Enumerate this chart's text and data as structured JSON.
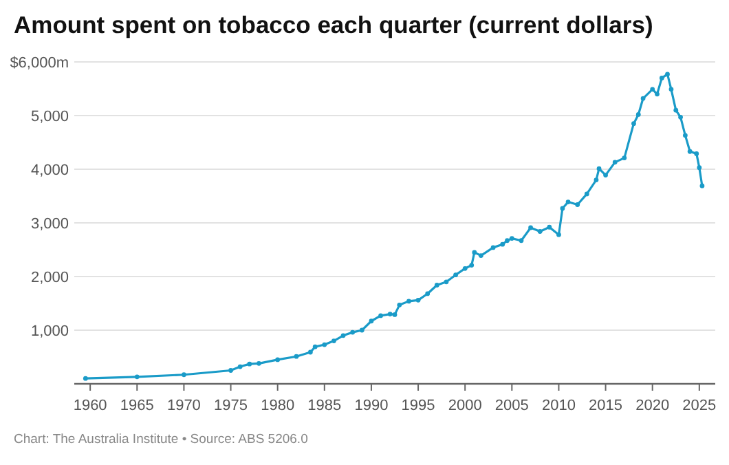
{
  "chart_data": {
    "type": "line",
    "title": "Amount spent on tobacco each quarter (current dollars)",
    "annotations": [
      "Chart: The Australia Institute • Source: ABS 5206.0"
    ],
    "x": [
      1959.5,
      1965,
      1970,
      1975,
      1976,
      1977,
      1978,
      1980,
      1982,
      1983.5,
      1984,
      1985,
      1986,
      1987,
      1988,
      1989,
      1990,
      1991,
      1992,
      1992.5,
      1993,
      1994,
      1995,
      1996,
      1997,
      1998,
      1999,
      2000,
      2000.7,
      2001,
      2001.7,
      2003,
      2004,
      2004.5,
      2005,
      2006,
      2007,
      2008,
      2009,
      2010,
      2010.4,
      2011,
      2012,
      2013,
      2014,
      2014.3,
      2015,
      2016,
      2017,
      2018,
      2018.5,
      2019,
      2020,
      2020.5,
      2021,
      2021.6,
      2022,
      2022.5,
      2023,
      2023.5,
      2024,
      2024.7,
      2025,
      2025.3
    ],
    "series": [
      {
        "color": "#1a9bc8",
        "values": [
          100,
          130,
          170,
          250,
          320,
          370,
          380,
          450,
          510,
          590,
          690,
          730,
          800,
          900,
          960,
          1000,
          1170,
          1270,
          1300,
          1290,
          1470,
          1540,
          1560,
          1680,
          1840,
          1900,
          2030,
          2150,
          2210,
          2450,
          2390,
          2540,
          2600,
          2670,
          2710,
          2670,
          2910,
          2840,
          2920,
          2780,
          3270,
          3390,
          3340,
          3540,
          3800,
          4010,
          3890,
          4130,
          4210,
          4850,
          5020,
          5320,
          5490,
          5400,
          5700,
          5770,
          5490,
          5100,
          4970,
          4630,
          4330,
          4290,
          4030,
          3690
        ]
      }
    ],
    "xlim": [
      1958.3,
      2026.7
    ],
    "xticks": [
      1960,
      1965,
      1970,
      1975,
      1980,
      1985,
      1990,
      1995,
      2000,
      2005,
      2010,
      2015,
      2020,
      2025
    ],
    "ylim": [
      0,
      6000
    ],
    "yticks": [
      {
        "value": 0,
        "label": null
      },
      {
        "value": 1000,
        "label": "1,000"
      },
      {
        "value": 2000,
        "label": "2,000"
      },
      {
        "value": 3000,
        "label": "3,000"
      },
      {
        "value": 4000,
        "label": "4,000"
      },
      {
        "value": 5000,
        "label": "5,000"
      },
      {
        "value": 6000,
        "label": "$6,000m"
      }
    ],
    "grid": "y",
    "marker": "circle",
    "line_style": "solid"
  }
}
